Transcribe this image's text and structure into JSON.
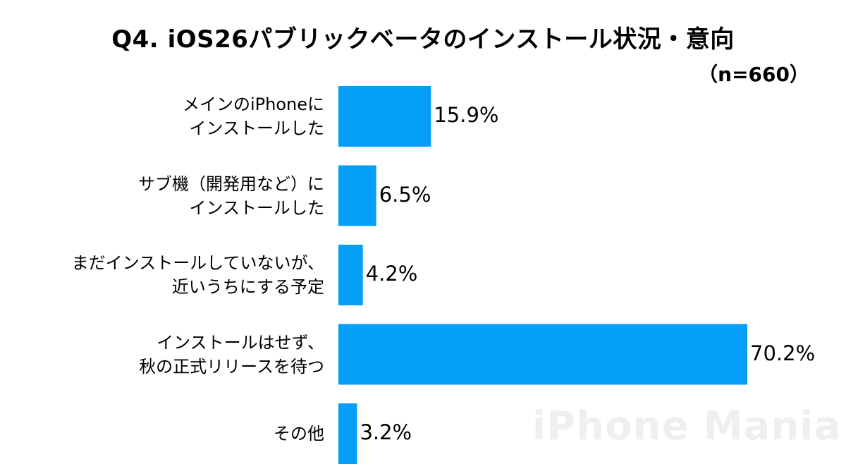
{
  "chart_data": {
    "type": "bar",
    "orientation": "horizontal",
    "title": "Q4. iOS26パブリックベータのインストール状況・意向",
    "subtitle": "（n=660）",
    "categories": [
      "メインのiPhoneに\nインストールした",
      "サブ機（開発用など）に\nインストールした",
      "まだインストールしていないが、\n近いうちにする予定",
      "インストールはせず、\n秋の正式リリースを待つ",
      "その他"
    ],
    "values": [
      15.9,
      6.5,
      4.2,
      70.2,
      3.2
    ],
    "value_labels": [
      "15.9%",
      "6.5%",
      "4.2%",
      "70.2%",
      "3.2%"
    ],
    "unit": "%",
    "xlim": [
      0,
      100
    ],
    "grid": false,
    "legend": "none",
    "bar_color": "#069ff7"
  },
  "watermark": "iPhone Mania"
}
